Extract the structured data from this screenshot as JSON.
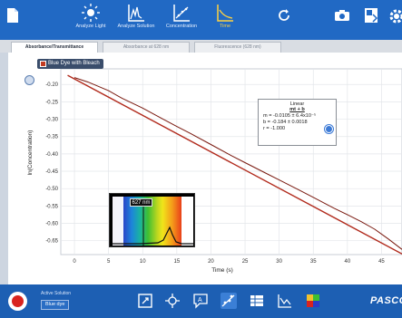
{
  "toolbar": {
    "items": [
      {
        "label": "Analyze Light",
        "icon": "light-bulb-icon"
      },
      {
        "label": "Analyze Solution",
        "icon": "spectrum-icon"
      },
      {
        "label": "Concentration",
        "icon": "concentration-icon"
      },
      {
        "label": "Time",
        "icon": "time-graph-icon",
        "highlight": true
      }
    ],
    "right_icons": [
      "refresh-icon",
      "camera-icon",
      "export-icon",
      "settings-icon"
    ]
  },
  "tabs": [
    {
      "label": "Absorbance/Transmittance",
      "active": true
    },
    {
      "label": "Absorbance at 628 nm",
      "active": false
    },
    {
      "label": "Fluorescence (628 nm)",
      "active": false
    }
  ],
  "legend": {
    "label": "Blue Dye with Bleach",
    "color": "#c23b22"
  },
  "chart_data": {
    "type": "line",
    "xlabel": "Time (s)",
    "ylabel": "ln(Concentration)",
    "xlim": [
      -2,
      48
    ],
    "ylim": [
      -0.69,
      -0.155
    ],
    "x_ticks": [
      0,
      5,
      10,
      15,
      20,
      25,
      30,
      35,
      40,
      45
    ],
    "y_ticks": [
      -0.2,
      -0.25,
      -0.3,
      -0.35,
      -0.4,
      -0.45,
      -0.5,
      -0.55,
      -0.6,
      -0.65
    ],
    "y_tick_labels": [
      "-0.20",
      "-0.25",
      "-0.30",
      "-0.35",
      "-0.40",
      "-0.45",
      "-0.50",
      "-0.55",
      "-0.60",
      "-0.65"
    ],
    "grid": true,
    "series": [
      {
        "name": "Blue Dye with Bleach",
        "color": "#7a1a10",
        "x": [
          0,
          2,
          5,
          7,
          10,
          13,
          15,
          17,
          20,
          23,
          25,
          28,
          30,
          33,
          35,
          38,
          40,
          42,
          44,
          46,
          48
        ],
        "y": [
          -0.18,
          -0.193,
          -0.218,
          -0.24,
          -0.268,
          -0.3,
          -0.321,
          -0.341,
          -0.373,
          -0.405,
          -0.425,
          -0.455,
          -0.475,
          -0.505,
          -0.525,
          -0.556,
          -0.575,
          -0.595,
          -0.617,
          -0.645,
          -0.675
        ]
      }
    ],
    "fit": {
      "name": "Linear fit",
      "color": "#b12a1c",
      "m": -0.0105,
      "b": -0.184,
      "x_range": [
        -1,
        48
      ]
    }
  },
  "fit_box": {
    "title": "Linear",
    "equation": "mt + b",
    "m_line": "m = -0.0105 ± 6.4x10⁻⁵",
    "b_line": "b = -0.184  ± 0.0018",
    "r_line": "r = -1.000"
  },
  "spectrum_inset": {
    "wavelength_tag": "627 nm"
  },
  "bottom": {
    "active_solution_label": "Active Solution",
    "active_solution_value": "Blue dye",
    "tools": [
      "scale-to-fit-icon",
      "crosshair-icon",
      "annotation-icon",
      "curve-fit-icon",
      "data-table-icon",
      "slope-icon",
      "color-picker-icon"
    ],
    "brand": "PASCO"
  }
}
